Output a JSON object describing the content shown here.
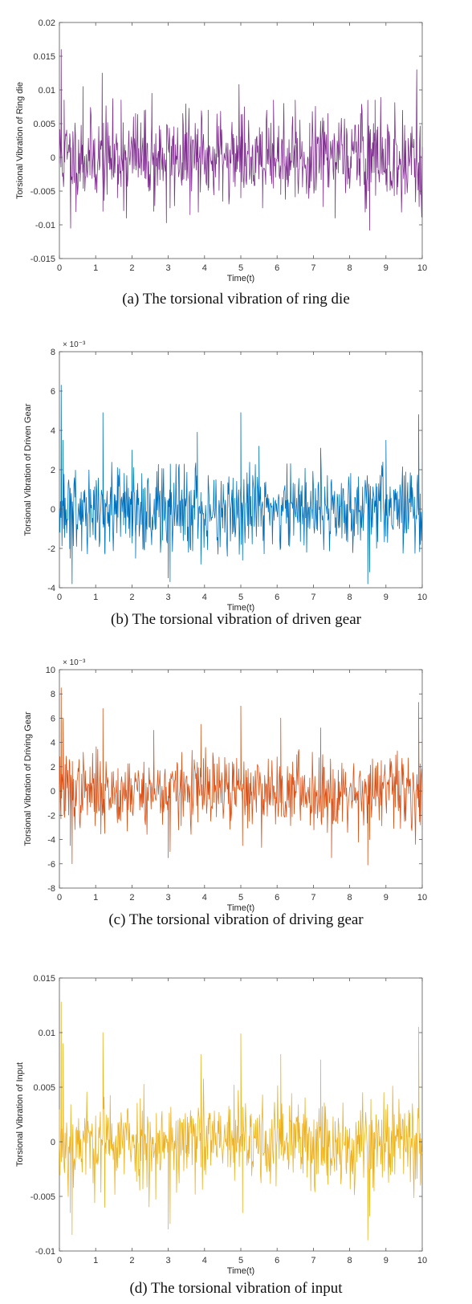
{
  "chart_data": [
    {
      "type": "line",
      "caption": "(a) The torsional vibration of ring die",
      "xlabel": "Time(t)",
      "ylabel": "Torsional Vibration of Ring die",
      "xlim": [
        0,
        10
      ],
      "ylim": [
        -0.015,
        0.02
      ],
      "xticks": [
        0,
        1,
        2,
        3,
        4,
        5,
        6,
        7,
        8,
        9,
        10
      ],
      "yticks": [
        -0.015,
        -0.01,
        -0.005,
        0,
        0.005,
        0.01,
        0.015,
        0.02
      ],
      "ytick_labels": [
        "-0.015",
        "-0.01",
        "-0.005",
        "0",
        "0.005",
        "0.01",
        "0.015",
        "0.02"
      ],
      "exponent_label": "",
      "color": "#7E2F8E",
      "series": [
        {
          "x": [
            0,
            0.05,
            0.13,
            0.3,
            0.31,
            0.65,
            0.7,
            1.18,
            1.2,
            1.6,
            1.7,
            1.85,
            2.1,
            2.55,
            2.6,
            2.95,
            3.05,
            3.4,
            3.6,
            4.1,
            4.5,
            4.95,
            5.0,
            5.1,
            5.6,
            5.9,
            6.1,
            6.5,
            6.9,
            7.4,
            7.6,
            8.3,
            8.55,
            8.7,
            9.3,
            9.85,
            9.95
          ],
          "y": [
            0,
            0.016,
            0.0085,
            -0.0045,
            -0.0105,
            0.0105,
            -0.005,
            0.0125,
            -0.008,
            -0.006,
            0.0085,
            -0.009,
            0.0065,
            0.0095,
            -0.008,
            -0.0097,
            -0.0075,
            0.0065,
            -0.0085,
            0.007,
            -0.0065,
            0.0108,
            -0.006,
            0.0075,
            -0.0075,
            0.0085,
            -0.0055,
            0.0085,
            -0.0045,
            0.0065,
            -0.009,
            0.0065,
            -0.0108,
            0.0085,
            -0.0055,
            0.013,
            -0.0055
          ]
        }
      ],
      "noise": {
        "points": 700,
        "sigma": 0.0032,
        "seed": 11
      }
    },
    {
      "type": "line",
      "caption": "(b) The torsional vibration of driven gear",
      "xlabel": "Time(t)",
      "ylabel": "Torsional Vibration of Driven Gear",
      "xlim": [
        0,
        10
      ],
      "ylim": [
        -4,
        8
      ],
      "xticks": [
        0,
        1,
        2,
        3,
        4,
        5,
        6,
        7,
        8,
        9,
        10
      ],
      "yticks": [
        -4,
        -2,
        0,
        2,
        4,
        6,
        8
      ],
      "ytick_labels": [
        "-4",
        "-2",
        "0",
        "2",
        "4",
        "6",
        "8"
      ],
      "exponent_label": "× 10⁻³",
      "color": "#0072BD",
      "series": [
        {
          "x": [
            0,
            0.05,
            0.1,
            0.3,
            0.35,
            1.2,
            1.25,
            2.0,
            2.1,
            3.0,
            3.05,
            3.8,
            3.9,
            5.0,
            5.05,
            5.5,
            6.1,
            7.2,
            8.5,
            8.55,
            9.0,
            9.9,
            9.95
          ],
          "y": [
            0,
            6.3,
            3.5,
            -2.5,
            -3.8,
            4.9,
            -2.2,
            3.0,
            -2.5,
            -3.5,
            -3.7,
            3.9,
            -2.8,
            4.9,
            -2.6,
            3.2,
            -2.0,
            3.1,
            -3.8,
            -3.2,
            3.5,
            4.8,
            -1.8
          ]
        }
      ],
      "noise": {
        "points": 700,
        "sigma": 1.1,
        "seed": 23
      }
    },
    {
      "type": "line",
      "caption": "(c) The torsional vibration of driving gear",
      "xlabel": "Time(t)",
      "ylabel": "Torsional Vibration of Driving Gear",
      "xlim": [
        0,
        10
      ],
      "ylim": [
        -8,
        10
      ],
      "xticks": [
        0,
        1,
        2,
        3,
        4,
        5,
        6,
        7,
        8,
        9,
        10
      ],
      "yticks": [
        -8,
        -6,
        -4,
        -2,
        0,
        2,
        4,
        6,
        8,
        10
      ],
      "ytick_labels": [
        "-8",
        "-6",
        "-4",
        "-2",
        "0",
        "2",
        "4",
        "6",
        "8",
        "10"
      ],
      "exponent_label": "× 10⁻³",
      "color": "#D95319",
      "series": [
        {
          "x": [
            0,
            0.05,
            0.1,
            0.3,
            0.35,
            1.2,
            1.25,
            2.6,
            3.0,
            3.05,
            3.9,
            5.0,
            5.05,
            6.1,
            7.2,
            7.5,
            8.5,
            8.55,
            9.9,
            9.95
          ],
          "y": [
            0,
            8.5,
            6.0,
            -4.5,
            -6.0,
            6.8,
            -3.5,
            5.0,
            -5.5,
            -5.0,
            5.5,
            7.0,
            -4.5,
            6.0,
            5.2,
            -5.5,
            -6.1,
            -4.0,
            7.3,
            -2.8
          ]
        }
      ],
      "noise": {
        "points": 700,
        "sigma": 1.5,
        "seed": 37
      }
    },
    {
      "type": "line",
      "caption": "(d) The torsional vibration of input",
      "xlabel": "Time(t)",
      "ylabel": "Torsional Vibration of Input",
      "xlim": [
        0,
        10
      ],
      "ylim": [
        -0.01,
        0.015
      ],
      "xticks": [
        0,
        1,
        2,
        3,
        4,
        5,
        6,
        7,
        8,
        9,
        10
      ],
      "yticks": [
        -0.01,
        -0.005,
        0,
        0.005,
        0.01,
        0.015
      ],
      "ytick_labels": [
        "-0.01",
        "-0.005",
        "0",
        "0.005",
        "0.01",
        "0.015"
      ],
      "exponent_label": "",
      "color": "#EDB120",
      "series": [
        {
          "x": [
            0,
            0.05,
            0.1,
            0.3,
            0.35,
            1.2,
            1.25,
            3.0,
            3.05,
            3.9,
            5.0,
            5.05,
            6.1,
            7.2,
            8.5,
            8.55,
            9.9,
            9.95
          ],
          "y": [
            0,
            0.0128,
            0.009,
            -0.0065,
            -0.0085,
            0.01,
            -0.006,
            -0.008,
            -0.0075,
            0.008,
            0.0099,
            -0.0065,
            0.008,
            0.0075,
            -0.009,
            -0.0068,
            0.0105,
            -0.004
          ]
        }
      ],
      "noise": {
        "points": 700,
        "sigma": 0.0021,
        "seed": 53
      }
    }
  ]
}
